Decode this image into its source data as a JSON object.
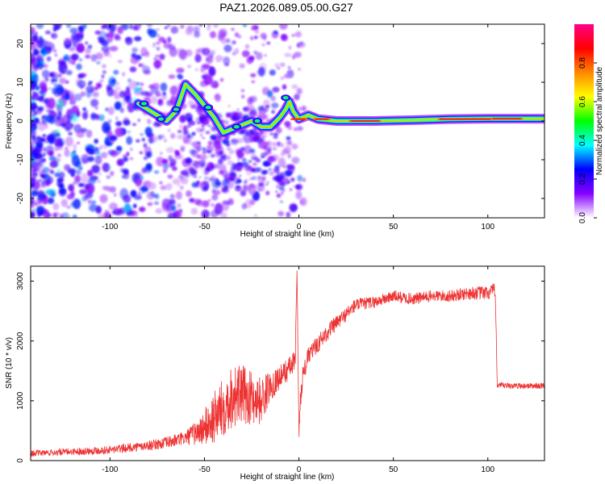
{
  "title": "PAZ1.2026.089.05.00.G27",
  "chart_data": [
    {
      "type": "heatmap",
      "title": "PAZ1.2026.089.05.00.G27",
      "xlabel": "Height of straight line (km)",
      "ylabel": "Frequency (Hz)",
      "xlim": [
        -142,
        130
      ],
      "ylim": [
        -25,
        25
      ],
      "xticks": [
        -100,
        -50,
        0,
        50,
        100
      ],
      "yticks": [
        -20,
        -10,
        0,
        10,
        20
      ],
      "xtick_labels": [
        "-100",
        "-50",
        "0",
        "50",
        "100"
      ],
      "ytick_labels": [
        "-20",
        "-10",
        "0",
        "10",
        "20"
      ],
      "ridge": {
        "x": [
          -85,
          -75,
          -70,
          -65,
          -60,
          -55,
          -50,
          -45,
          -40,
          -35,
          -30,
          -25,
          -20,
          -15,
          -10,
          -7,
          -5,
          -3,
          0,
          5,
          10,
          20,
          40,
          60,
          80,
          100,
          130
        ],
        "frequency": [
          4.5,
          1.5,
          0,
          2.5,
          9.5,
          7,
          4,
          1,
          -3,
          -2,
          -1,
          0,
          -1.5,
          -1.5,
          1,
          3,
          5,
          2.5,
          0.5,
          1.5,
          0.5,
          0,
          0,
          0.2,
          0.5,
          0.6,
          0.6
        ]
      },
      "colorbar": {
        "label": "Normalized spectral amplitude",
        "range": [
          0,
          1
        ],
        "ticks": [
          0.0,
          0.2,
          0.4,
          0.6,
          0.8
        ],
        "tick_labels": [
          "0.0",
          "0.2",
          "0.4",
          "0.6",
          "0.8"
        ],
        "colors": [
          "#ffffff",
          "#8800ff",
          "#0000ff",
          "#00ffff",
          "#00ff00",
          "#ffff00",
          "#ff8800",
          "#ff0000",
          "#ff0088"
        ]
      }
    },
    {
      "type": "line",
      "xlabel": "Height of straight line (km)",
      "ylabel": "SNR (10 * v/v)",
      "xlim": [
        -142,
        130
      ],
      "ylim": [
        0,
        3250
      ],
      "xticks": [
        -100,
        -50,
        0,
        50,
        100
      ],
      "yticks": [
        0,
        1000,
        2000,
        3000
      ],
      "xtick_labels": [
        "-100",
        "-50",
        "0",
        "50",
        "100"
      ],
      "ytick_labels": [
        "0",
        "1000",
        "2000",
        "3000"
      ],
      "series": [
        {
          "name": "SNR",
          "color": "#ee3333",
          "x": [
            -142,
            -120,
            -100,
            -80,
            -70,
            -60,
            -52,
            -45,
            -40,
            -35,
            -30,
            -25,
            -20,
            -15,
            -10,
            -5,
            -2,
            -1,
            0,
            1,
            2,
            5,
            10,
            15,
            20,
            25,
            30,
            40,
            50,
            60,
            70,
            80,
            90,
            100,
            104,
            105,
            110,
            120,
            130
          ],
          "y": [
            120,
            150,
            180,
            250,
            300,
            380,
            500,
            700,
            900,
            1100,
            1100,
            1050,
            1000,
            1250,
            1400,
            1550,
            1650,
            3200,
            500,
            1100,
            1400,
            1750,
            1950,
            2150,
            2300,
            2450,
            2600,
            2650,
            2750,
            2700,
            2750,
            2750,
            2800,
            2800,
            2850,
            1250,
            1250,
            1250,
            1250
          ],
          "noise": [
            50,
            60,
            70,
            80,
            100,
            120,
            250,
            450,
            500,
            550,
            500,
            450,
            400,
            250,
            200,
            200,
            200,
            0,
            200,
            200,
            180,
            150,
            150,
            150,
            130,
            120,
            110,
            100,
            100,
            100,
            100,
            100,
            110,
            120,
            120,
            60,
            50,
            50,
            50
          ]
        }
      ]
    }
  ]
}
